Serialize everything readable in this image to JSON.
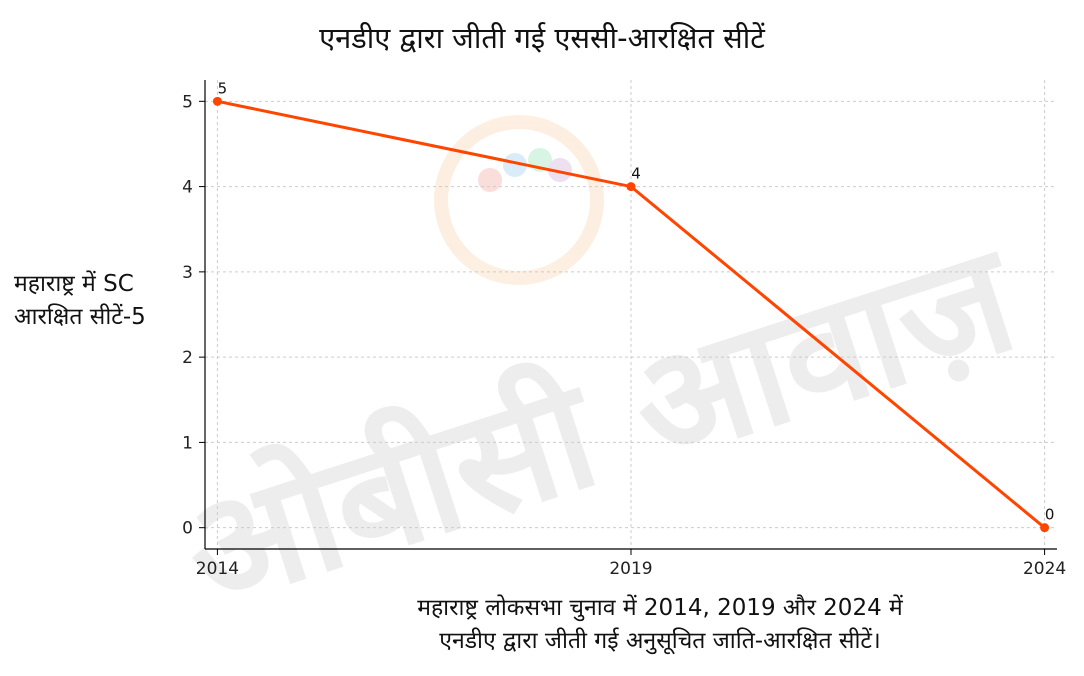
{
  "chart_data": {
    "type": "line",
    "title": "एनडीए द्वारा जीती गई एससी-आरक्षित सीटें",
    "ylabel_lines": [
      "महाराष्ट्र में SC",
      "आरक्षित सीटें-5"
    ],
    "xlabel_lines": [
      "महाराष्ट्र लोकसभा चुनाव में 2014, 2019 और 2024 में",
      "एनडीए द्वारा जीती गई अनुसूचित जाति-आरक्षित सीटें।"
    ],
    "x": [
      2014,
      2019,
      2024
    ],
    "x_tick_labels": [
      "2014",
      "2019",
      "2024"
    ],
    "series": [
      {
        "values": [
          5,
          4,
          0
        ],
        "data_labels": [
          "5",
          "4",
          "0"
        ],
        "color": "#ff4500"
      }
    ],
    "y_ticks": [
      0,
      1,
      2,
      3,
      4,
      5
    ],
    "ylim": [
      -0.25,
      5.25
    ],
    "grid": true,
    "legend": "none"
  },
  "watermark": {
    "text": "ओबीसी आवाज़",
    "colors": [
      "#f4a460",
      "#dddddd"
    ]
  }
}
